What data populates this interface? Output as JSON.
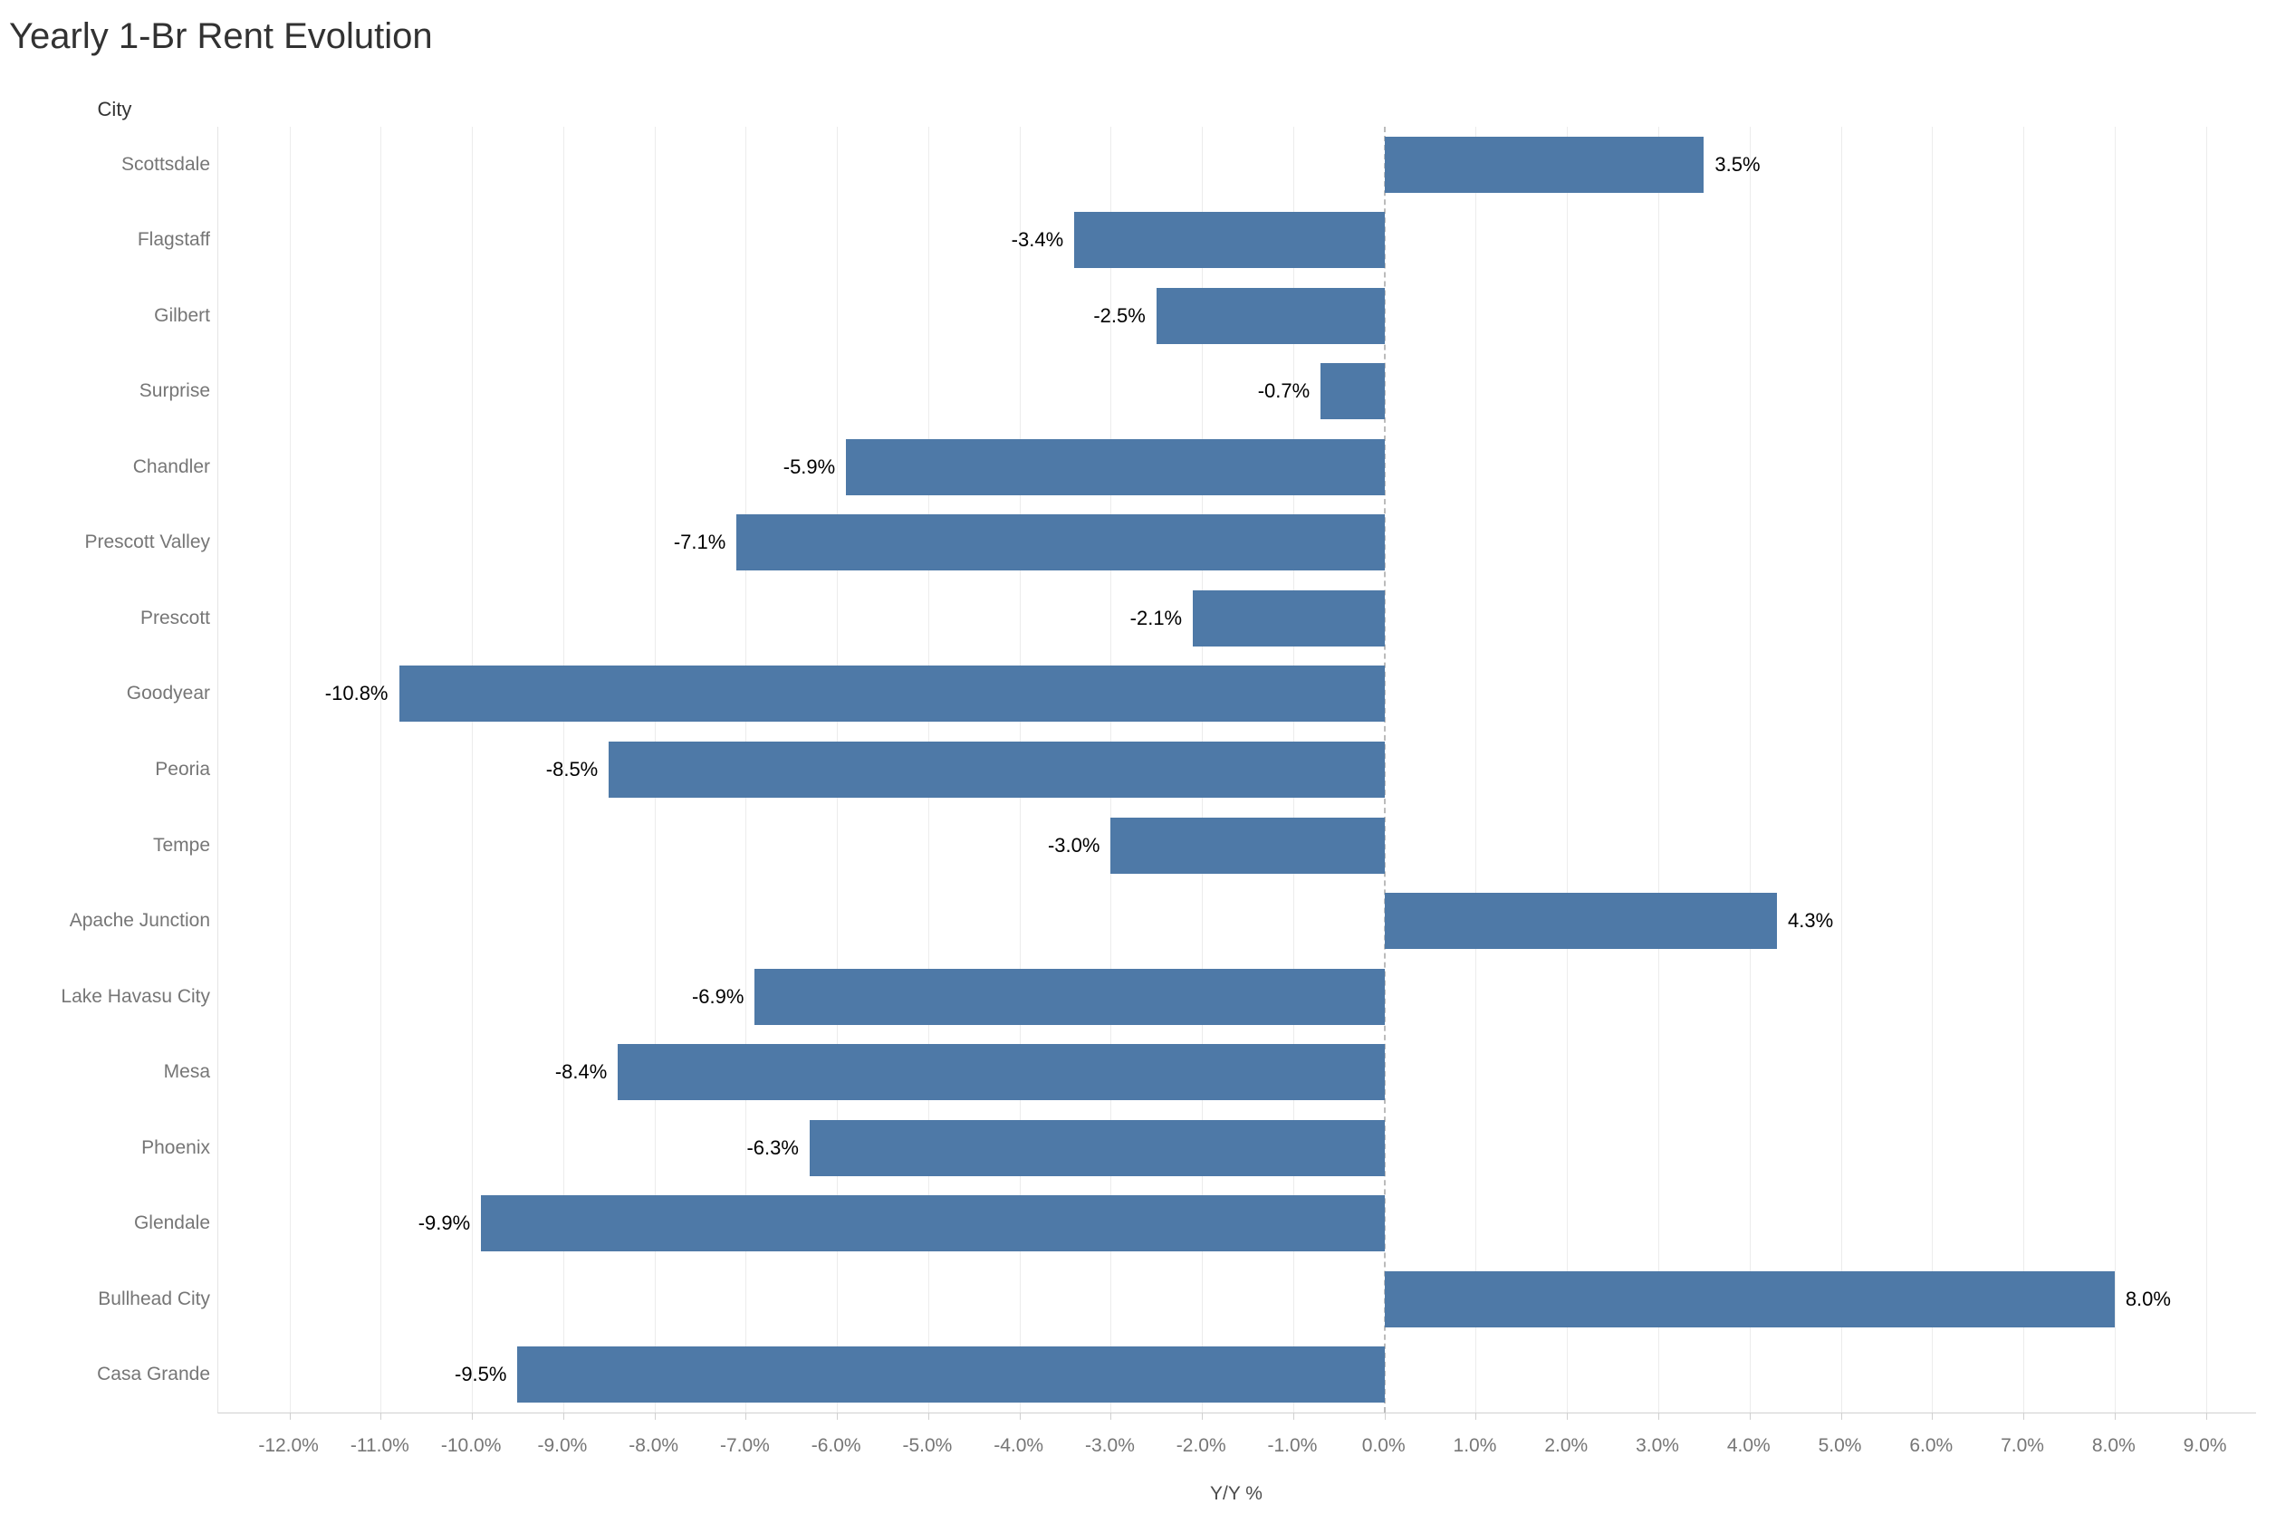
{
  "title": "Yearly 1-Br Rent Evolution",
  "chart_data": {
    "type": "bar",
    "orientation": "horizontal",
    "title": "Yearly 1-Br Rent Evolution",
    "category_field_label": "City",
    "categories": [
      "Scottsdale",
      "Flagstaff",
      "Gilbert",
      "Surprise",
      "Chandler",
      "Prescott Valley",
      "Prescott",
      "Goodyear",
      "Peoria",
      "Tempe",
      "Apache Junction",
      "Lake Havasu City",
      "Mesa",
      "Phoenix",
      "Glendale",
      "Bullhead City",
      "Casa Grande"
    ],
    "values": [
      3.5,
      -3.4,
      -2.5,
      -0.7,
      -5.9,
      -7.1,
      -2.1,
      -10.8,
      -8.5,
      -3.0,
      4.3,
      -6.9,
      -8.4,
      -6.3,
      -9.9,
      8.0,
      -9.5
    ],
    "value_labels": [
      "3.5%",
      "-3.4%",
      "-2.5%",
      "-0.7%",
      "-5.9%",
      "-7.1%",
      "-2.1%",
      "-10.8%",
      "-8.5%",
      "-3.0%",
      "4.3%",
      "-6.9%",
      "-8.4%",
      "-6.3%",
      "-9.9%",
      "8.0%",
      "-9.5%"
    ],
    "xlabel": "Y/Y %",
    "xlim": [
      -12.78,
      9.55
    ],
    "x_ticks": [
      -12,
      -11,
      -10,
      -9,
      -8,
      -7,
      -6,
      -5,
      -4,
      -3,
      -2,
      -1,
      0,
      1,
      2,
      3,
      4,
      5,
      6,
      7,
      8,
      9
    ],
    "x_tick_labels": [
      "-12.0%",
      "-11.0%",
      "-10.0%",
      "-9.0%",
      "-8.0%",
      "-7.0%",
      "-6.0%",
      "-5.0%",
      "-4.0%",
      "-3.0%",
      "-2.0%",
      "-1.0%",
      "0.0%",
      "1.0%",
      "2.0%",
      "3.0%",
      "4.0%",
      "5.0%",
      "6.0%",
      "7.0%",
      "8.0%",
      "9.0%"
    ],
    "grid": true,
    "legend": "none",
    "zero_line_style": "dashed",
    "colors": {
      "bar": "#4e79a7",
      "value_label": "#000000",
      "tick_label": "#767676",
      "city_label": "#767676",
      "title": "#323232",
      "gridline": "#ececec",
      "zero_line": "#bbbbbb",
      "axis_line": "#d0d0d0"
    }
  }
}
